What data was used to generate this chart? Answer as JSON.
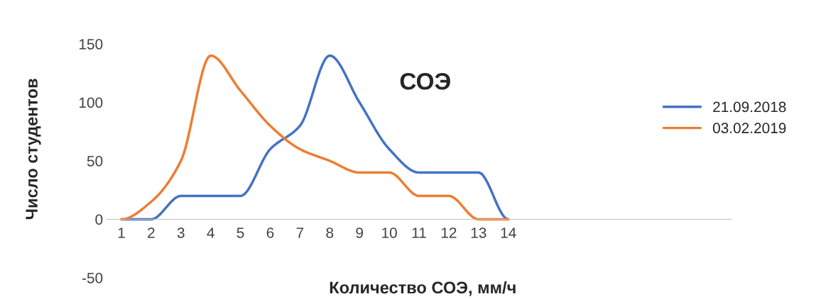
{
  "chart_data": {
    "type": "line",
    "title": "СОЭ",
    "xlabel": "Количество СОЭ, мм/ч",
    "ylabel": "Число студентов",
    "categories": [
      "1",
      "2",
      "3",
      "4",
      "5",
      "6",
      "7",
      "8",
      "9",
      "10",
      "11",
      "12",
      "13",
      "14",
      null,
      null,
      null,
      null,
      null,
      null,
      null
    ],
    "series": [
      {
        "name": "21.09.2018",
        "color": "#4472c4",
        "values": [
          0,
          0,
          20,
          20,
          20,
          60,
          80,
          140,
          100,
          60,
          40,
          40,
          40,
          0,
          null,
          null,
          null,
          null,
          null,
          null,
          null
        ]
      },
      {
        "name": "03.02.2019",
        "color": "#ed7d31",
        "values": [
          0,
          15,
          50,
          140,
          110,
          80,
          60,
          50,
          40,
          40,
          20,
          20,
          0,
          0,
          null,
          null,
          null,
          null,
          null,
          null,
          null
        ]
      }
    ],
    "ylim": [
      -50,
      150
    ],
    "yticks": [
      -50,
      0,
      50,
      100,
      150
    ],
    "grid": false,
    "legend": "right",
    "marker": "none",
    "line_style": "solid"
  }
}
